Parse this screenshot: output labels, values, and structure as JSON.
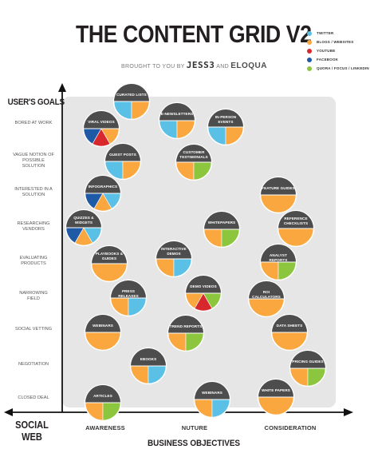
{
  "header": {
    "title": "THE CONTENT GRID V2",
    "subtitle_prefix": "BROUGHT TO YOU BY",
    "brand_1": "JESS3",
    "subtitle_join": "AND",
    "brand_2": "ELOQUA"
  },
  "legend": [
    {
      "label": "TWITTER",
      "color": "#5bc0e6"
    },
    {
      "label": "BLOGS / WEBSITES",
      "color": "#f9a73e"
    },
    {
      "label": "YOUTUBE",
      "color": "#d7282e"
    },
    {
      "label": "FACEBOOK",
      "color": "#1f5aa6"
    },
    {
      "label": "QUORA / FOCUS / LINKEDIN",
      "color": "#8cc63e"
    }
  ],
  "colors": {
    "twitter": "#5bc0e6",
    "blogs": "#f9a73e",
    "youtube": "#d7282e",
    "facebook": "#1f5aa6",
    "quora": "#8cc63e",
    "bubble_top": "#4d4d4d",
    "grid_bg": "#e6e6e6"
  },
  "axes": {
    "y_title": "USER'S GOALS",
    "x_title": "BUSINESS OBJECTIVES",
    "corner": "SOCIAL WEB",
    "rows": [
      "BORED AT WORK",
      "VAGUE NOTION OF POSSIBLE SOLUTION",
      "INTERESTED IN A SOLUTION",
      "RESEARCHING VENDORS",
      "EVALUATING PRODUCTS",
      "NARROWING FIELD",
      "SOCIAL VETTING",
      "NEGOTIATION",
      "CLOSED DEAL"
    ],
    "columns": [
      "AWARENESS",
      "NUTURE",
      "CONSIDERATION"
    ]
  },
  "bubbles": [
    {
      "label": "CURATED LISTS",
      "channels": [
        "twitter",
        "blogs"
      ]
    },
    {
      "label": "E-NEWSLETTERS",
      "channels": [
        "twitter",
        "blogs"
      ]
    },
    {
      "label": "IN-PERSON EVENTS",
      "channels": [
        "twitter",
        "blogs"
      ]
    },
    {
      "label": "VIRAL VIDEOS",
      "channels": [
        "facebook",
        "youtube",
        "blogs"
      ]
    },
    {
      "label": "GUEST POSTS",
      "channels": [
        "twitter",
        "blogs"
      ]
    },
    {
      "label": "CUSTOMER TESTIMONIALS",
      "channels": [
        "blogs",
        "quora"
      ]
    },
    {
      "label": "INFOGRAPHICS",
      "channels": [
        "facebook",
        "blogs",
        "twitter"
      ]
    },
    {
      "label": "FEATURE GUIDES",
      "channels": [
        "blogs"
      ]
    },
    {
      "label": "QUIZZES & WIDGETS",
      "channels": [
        "facebook",
        "blogs",
        "twitter"
      ]
    },
    {
      "label": "WHITEPAPERS",
      "channels": [
        "blogs",
        "quora"
      ]
    },
    {
      "label": "REFERENCE CHECKLISTS",
      "channels": [
        "blogs"
      ]
    },
    {
      "label": "PLAYBOOKS & GUIDES",
      "channels": [
        "blogs"
      ]
    },
    {
      "label": "INTERACTIVE DEMOS",
      "channels": [
        "blogs",
        "twitter"
      ]
    },
    {
      "label": "ANALYST REPORTS",
      "channels": [
        "blogs",
        "quora"
      ]
    },
    {
      "label": "DEMO VIDEOS",
      "channels": [
        "blogs",
        "youtube",
        "quora"
      ]
    },
    {
      "label": "PRESS RELEASES",
      "channels": [
        "blogs",
        "twitter"
      ]
    },
    {
      "label": "ROI CALCULATORS",
      "channels": [
        "blogs"
      ]
    },
    {
      "label": "WEBINARS",
      "channels": [
        "blogs"
      ]
    },
    {
      "label": "TREND REPORTS",
      "channels": [
        "blogs",
        "quora"
      ]
    },
    {
      "label": "DATA SHEETS",
      "channels": [
        "blogs"
      ]
    },
    {
      "label": "EBOOKS",
      "channels": [
        "blogs",
        "twitter"
      ]
    },
    {
      "label": "PRICING GUIDES",
      "channels": [
        "blogs",
        "quora"
      ]
    },
    {
      "label": "ARTICLES",
      "channels": [
        "blogs",
        "quora"
      ]
    },
    {
      "label": "WEBINARS",
      "channels": [
        "blogs",
        "twitter"
      ]
    },
    {
      "label": "WHITE PAPERS",
      "channels": [
        "blogs"
      ]
    }
  ]
}
